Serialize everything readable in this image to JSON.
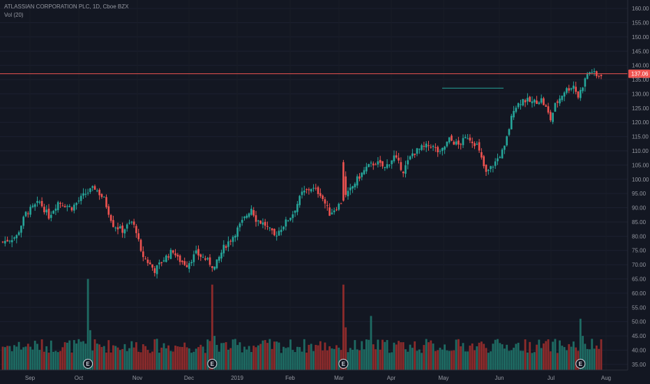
{
  "header": {
    "title": "ATLASSIAN CORPORATION PLC, 1D, Cboe BZX",
    "indicator": "Vol (20)"
  },
  "colors": {
    "background": "#131722",
    "up": "#26a69a",
    "down": "#ef5350",
    "vol_up": "#1e6b63",
    "vol_down": "#8c2b2b",
    "price_line": "#ef5350",
    "axis_text": "#9598a1",
    "resistance": "#26a69a"
  },
  "chart_data": {
    "type": "candlestick",
    "symbol": "ATLASSIAN CORPORATION PLC",
    "interval": "1D",
    "exchange": "Cboe BZX",
    "y_axis_ticks": [
      "160.00",
      "155.00",
      "150.00",
      "145.00",
      "140.00",
      "135.00",
      "130.00",
      "125.00",
      "120.00",
      "115.00",
      "110.00",
      "105.00",
      "100.00",
      "95.00",
      "90.00",
      "85.00",
      "80.00",
      "75.00",
      "70.00",
      "65.00",
      "60.00",
      "55.00",
      "50.00",
      "45.00",
      "40.00",
      "35.00"
    ],
    "x_axis_ticks": [
      "Sep",
      "Oct",
      "Nov",
      "Dec",
      "2019",
      "Feb",
      "Mar",
      "Apr",
      "May",
      "Jun",
      "Jul",
      "Aug"
    ],
    "ylim": [
      33,
      161
    ],
    "current_price": 137.06,
    "current_price_label": "137.06",
    "resistance_level": 132,
    "earnings_markers": [
      {
        "label": "E",
        "month": "Oct"
      },
      {
        "label": "E",
        "month": "Jan"
      },
      {
        "label": "E",
        "month": "Apr"
      },
      {
        "label": "E",
        "month": "Jul"
      }
    ],
    "volume_indicator": "Vol (20)",
    "volume_range": [
      33,
      65
    ],
    "price_path": [
      [
        0,
        78
      ],
      [
        6,
        80
      ],
      [
        10,
        88
      ],
      [
        16,
        92
      ],
      [
        20,
        87
      ],
      [
        24,
        92
      ],
      [
        30,
        90
      ],
      [
        36,
        95
      ],
      [
        40,
        97
      ],
      [
        44,
        93
      ],
      [
        48,
        84
      ],
      [
        52,
        82
      ],
      [
        56,
        85
      ],
      [
        58,
        82
      ],
      [
        60,
        74
      ],
      [
        62,
        72
      ],
      [
        66,
        68
      ],
      [
        70,
        72
      ],
      [
        74,
        75
      ],
      [
        76,
        72
      ],
      [
        80,
        70
      ],
      [
        84,
        74
      ],
      [
        88,
        72
      ],
      [
        92,
        69
      ],
      [
        96,
        76
      ],
      [
        100,
        80
      ],
      [
        104,
        85
      ],
      [
        108,
        90
      ],
      [
        110,
        86
      ],
      [
        114,
        84
      ],
      [
        118,
        80
      ],
      [
        122,
        84
      ],
      [
        126,
        88
      ],
      [
        130,
        95
      ],
      [
        134,
        97
      ],
      [
        138,
        95
      ],
      [
        142,
        88
      ],
      [
        146,
        91
      ],
      [
        150,
        95
      ],
      [
        154,
        100
      ],
      [
        158,
        104
      ],
      [
        162,
        106
      ],
      [
        166,
        104
      ],
      [
        170,
        108
      ],
      [
        174,
        103
      ],
      [
        178,
        109
      ],
      [
        182,
        111
      ],
      [
        186,
        112
      ],
      [
        190,
        109
      ],
      [
        194,
        114
      ],
      [
        198,
        112
      ],
      [
        202,
        115
      ],
      [
        206,
        112
      ],
      [
        210,
        102
      ],
      [
        214,
        106
      ],
      [
        218,
        111
      ],
      [
        222,
        125
      ],
      [
        226,
        128
      ],
      [
        230,
        127
      ],
      [
        234,
        128
      ],
      [
        236,
        125
      ],
      [
        238,
        121
      ],
      [
        240,
        126
      ],
      [
        244,
        131
      ],
      [
        246,
        132
      ],
      [
        248,
        133
      ],
      [
        250,
        129
      ],
      [
        254,
        137
      ],
      [
        256,
        138
      ],
      [
        258,
        136
      ],
      [
        260,
        137
      ]
    ]
  }
}
